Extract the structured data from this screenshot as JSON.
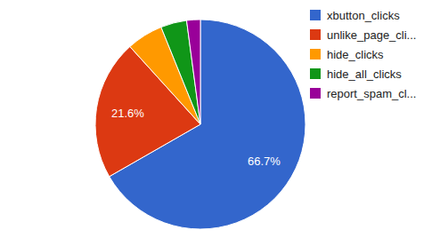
{
  "chart_data": {
    "type": "pie",
    "categories": [
      "xbutton_clicks",
      "unlike_page_cli...",
      "hide_clicks",
      "hide_all_clicks",
      "report_spam_cl..."
    ],
    "values": [
      66.7,
      21.6,
      5.6,
      4.0,
      2.1
    ],
    "value_labels": [
      "66.7%",
      "21.6%",
      null,
      null,
      null
    ],
    "colors": [
      "#3366cc",
      "#dc3912",
      "#ff9900",
      "#109618",
      "#990099"
    ],
    "data_labels": true,
    "legend": "right"
  }
}
